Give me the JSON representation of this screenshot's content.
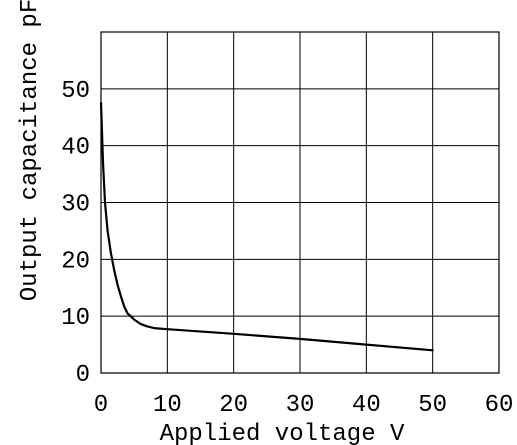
{
  "chart_data": {
    "type": "line",
    "title": "",
    "xlabel": "Applied voltage V",
    "ylabel": "Output capacitance pF",
    "xlim": [
      0,
      60
    ],
    "ylim": [
      0,
      60
    ],
    "x_ticks": [
      0,
      10,
      20,
      30,
      40,
      50,
      60
    ],
    "y_ticks": [
      0,
      10,
      20,
      30,
      40,
      50
    ],
    "grid": true,
    "legend": "none",
    "series": [
      {
        "color": "#000000",
        "points": [
          [
            0,
            47.5
          ],
          [
            0.1,
            44
          ],
          [
            0.3,
            37
          ],
          [
            0.6,
            30
          ],
          [
            1,
            25
          ],
          [
            1.5,
            21
          ],
          [
            2,
            18
          ],
          [
            2.5,
            15.5
          ],
          [
            3,
            13.5
          ],
          [
            3.5,
            11.7
          ],
          [
            4,
            10.5
          ],
          [
            5,
            9.4
          ],
          [
            6,
            8.6
          ],
          [
            7,
            8.2
          ],
          [
            8,
            7.9
          ],
          [
            10,
            7.7
          ],
          [
            20,
            6.9
          ],
          [
            30,
            6.0
          ],
          [
            40,
            5.0
          ],
          [
            50,
            4.0
          ]
        ]
      }
    ]
  }
}
